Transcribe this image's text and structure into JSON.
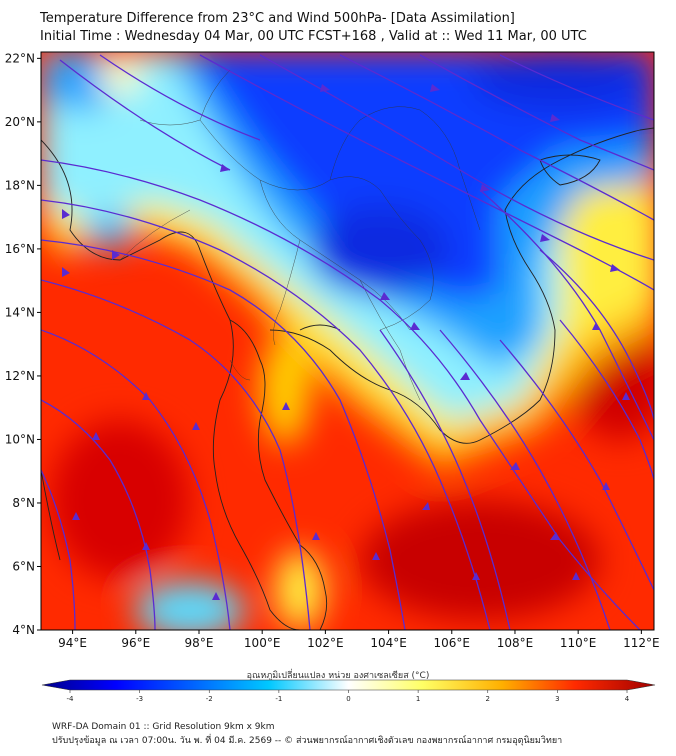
{
  "header": {
    "title_line1": "Temperature Difference from 23°C and Wind 500hPa- [Data Assimilation]",
    "title_line2": "Initial Time : Wednesday 04 Mar, 00 UTC FCST+168 , Valid at ::  Wed 11 Mar, 00 UTC"
  },
  "map": {
    "lat_labels": [
      "22°N",
      "20°N",
      "18°N",
      "16°N",
      "14°N",
      "12°N",
      "10°N",
      "8°N",
      "6°N",
      "4°N"
    ],
    "lon_labels": [
      "94°E",
      "96°E",
      "98°E",
      "100°E",
      "102°E",
      "104°E",
      "106°E",
      "108°E",
      "110°E",
      "112°E"
    ],
    "lat_values": [
      22,
      20,
      18,
      16,
      14,
      12,
      10,
      8,
      6,
      4
    ],
    "lon_values": [
      94,
      96,
      98,
      100,
      102,
      104,
      106,
      108,
      110,
      112
    ],
    "streamline_color": "#5a2bd1"
  },
  "colorbar": {
    "label": "อุณหภูมิเปลี่ยนแปลง หน่วย องศาเซลเซียส (°C)",
    "ticks": [
      "-4",
      "-3",
      "-2",
      "-1",
      "0",
      "1",
      "2",
      "3",
      "4"
    ],
    "colors": [
      "#00008b",
      "#0000ff",
      "#0066ff",
      "#00c8ff",
      "#ffffff",
      "#ffff66",
      "#ffb000",
      "#ff2a00",
      "#a00000"
    ]
  },
  "footer": {
    "line1": "WRF-DA Domain 01 :: Grid Resolution 9km x 9km",
    "line2": "ปรับปรุงข้อมูล ณ เวลา 07:00น. วัน พ. ที่ 04 มี.ค. 2569 -- © ส่วนพยากรณ์อากาศเชิงตัวเลข กองพยากรณ์อากาศ กรมอุตุนิยมวิทยา"
  }
}
